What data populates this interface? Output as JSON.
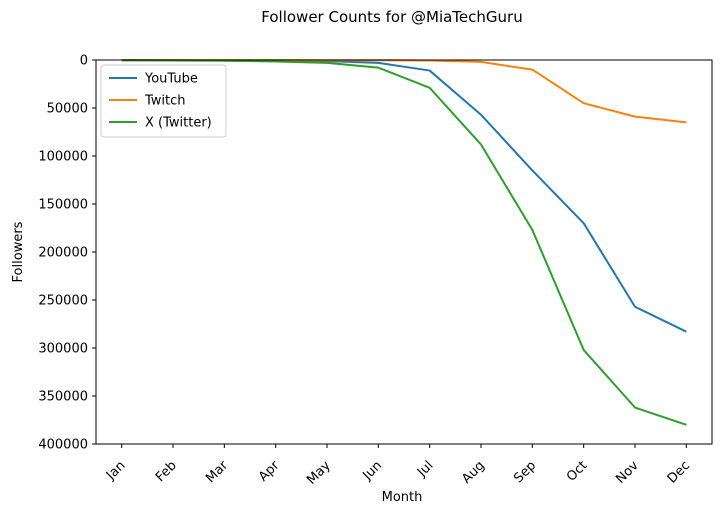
{
  "chart_data": {
    "type": "line",
    "title": "Follower Counts for @MiaTechGuru",
    "xlabel": "Month",
    "ylabel": "Followers",
    "categories": [
      "Jan",
      "Feb",
      "Mar",
      "Apr",
      "May",
      "Jun",
      "Jul",
      "Aug",
      "Sep",
      "Oct",
      "Nov",
      "Dec"
    ],
    "ylim": [
      400000,
      0
    ],
    "y_inverted": true,
    "yticks": [
      0,
      50000,
      100000,
      150000,
      200000,
      250000,
      300000,
      350000,
      400000
    ],
    "grid": false,
    "legend_position": "top-left",
    "series": [
      {
        "name": "YouTube",
        "color": "#1f77b4",
        "values": [
          200,
          300,
          500,
          800,
          1200,
          3000,
          11000,
          57000,
          115000,
          170000,
          257000,
          283000
        ]
      },
      {
        "name": "Twitch",
        "color": "#ff7f0e",
        "values": [
          50,
          80,
          100,
          150,
          200,
          300,
          500,
          2000,
          10000,
          45000,
          59000,
          65000
        ]
      },
      {
        "name": "X (Twitter)",
        "color": "#2ca02c",
        "values": [
          300,
          500,
          800,
          1500,
          3000,
          8000,
          29000,
          88000,
          177000,
          302000,
          362000,
          380000
        ]
      }
    ]
  }
}
